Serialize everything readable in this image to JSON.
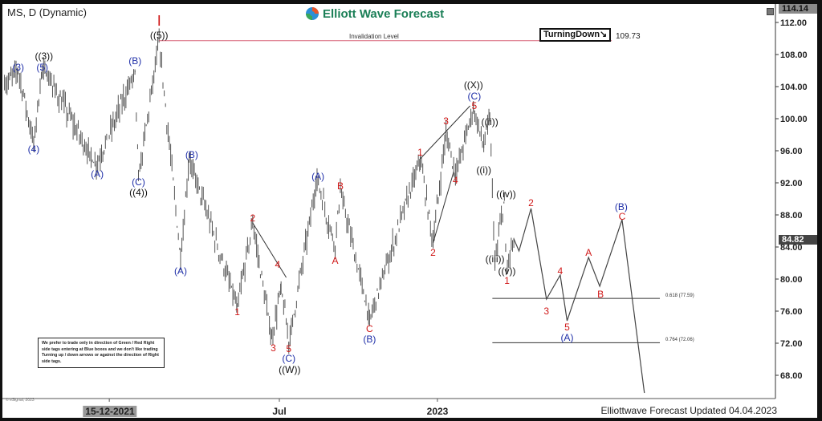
{
  "header": {
    "symbol_title": "MS, D (Dynamic)",
    "brand": "Elliott Wave Forecast",
    "turning_badge": "TurningDown↘",
    "invalidation_label": "Invalidation Level",
    "invalidation_value": "109.73"
  },
  "footer": {
    "updated": "Elliottwave Forecast Updated 04.04.2023",
    "copyright": "© eSignal, 2023"
  },
  "disclaimer": "We prefer to trade only in direction of Green / Red Right side tags entering at Blue boxes and we don't like trading Turning up / down arrows or against the direction of Right side tags.",
  "price_tags": {
    "high": "114.14",
    "current": "84.82"
  },
  "fib_labels": {
    "f618": "0.618 (77.59)",
    "f764": "0.764 (72.06)"
  },
  "colors": {
    "red": "#d01818",
    "blue": "#1f2fa8",
    "black": "#111111",
    "bars": "#555555",
    "brand": "#1b7f57",
    "invalidation": "#d9667a"
  },
  "chart_data": {
    "type": "bar",
    "subtype": "ohlc-price-with-elliott-wave-labels",
    "symbol": "MS",
    "ylim": [
      64.5,
      114.14
    ],
    "y_ticks": [
      "112.00",
      "108.00",
      "104.00",
      "100.00",
      "96.00",
      "92.00",
      "88.00",
      "84.00",
      "80.00",
      "76.00",
      "72.00",
      "68.00"
    ],
    "x_ticks": [
      {
        "date": "2021-12-15",
        "label": "15-12-2021"
      },
      {
        "date": "2022-07-01",
        "label": "Jul"
      },
      {
        "date": "2023-01-01",
        "label": "2023"
      }
    ],
    "grid": false,
    "price_pivots": [
      [
        "2021-08-15",
        104
      ],
      [
        "2021-08-31",
        106
      ],
      [
        "2021-09-18",
        97
      ],
      [
        "2021-09-28",
        106.5
      ],
      [
        "2021-11-30",
        94
      ],
      [
        "2022-01-14",
        106
      ],
      [
        "2022-01-18",
        92.5
      ],
      [
        "2022-02-11",
        109.73
      ],
      [
        "2022-03-08",
        82.5
      ],
      [
        "2022-03-18",
        95
      ],
      [
        "2022-05-13",
        76.5
      ],
      [
        "2022-05-31",
        87
      ],
      [
        "2022-06-22",
        72.5
      ],
      [
        "2022-07-03",
        79
      ],
      [
        "2022-07-12",
        72
      ],
      [
        "2022-08-14",
        92.5
      ],
      [
        "2022-09-04",
        84
      ],
      [
        "2022-09-10",
        91
      ],
      [
        "2022-10-14",
        75
      ],
      [
        "2022-12-12",
        95
      ],
      [
        "2022-12-27",
        84.5
      ],
      [
        "2023-01-11",
        98.5
      ],
      [
        "2023-01-22",
        93
      ],
      [
        "2023-02-12",
        101.3
      ],
      [
        "2023-02-24",
        96.5
      ],
      [
        "2023-03-03",
        100
      ],
      [
        "2023-03-09",
        82
      ],
      [
        "2023-03-20",
        90
      ],
      [
        "2023-03-22",
        81
      ],
      [
        "2023-03-31",
        84.82
      ]
    ],
    "projection_path": [
      [
        "2023-03-31",
        85
      ],
      [
        "2023-04-06",
        83.5
      ],
      [
        "2023-04-20",
        88.8
      ],
      [
        "2023-05-08",
        77.5
      ],
      [
        "2023-05-24",
        80.5
      ],
      [
        "2023-06-01",
        74.8
      ],
      [
        "2023-06-26",
        82.7
      ],
      [
        "2023-07-09",
        79.1
      ],
      [
        "2023-08-04",
        87.4
      ],
      [
        "2023-08-30",
        65.8
      ]
    ],
    "trend_lines": [
      [
        [
          "2022-05-31",
          87
        ],
        [
          "2022-07-09",
          80.2
        ]
      ],
      [
        [
          "2022-12-12",
          95
        ],
        [
          "2023-02-08",
          101.6
        ]
      ],
      [
        [
          "2022-12-27",
          84.5
        ],
        [
          "2023-01-20",
          93.4
        ]
      ]
    ],
    "levels": [
      {
        "name": "invalidation",
        "value": 109.73,
        "from": "2022-02-11",
        "to": "2023-07-23"
      },
      {
        "name": "fib_0.618",
        "value": 77.59,
        "from": "2023-03-06",
        "to": "2023-09-17"
      },
      {
        "name": "fib_0.764",
        "value": 72.06,
        "from": "2023-03-06",
        "to": "2023-09-17"
      }
    ],
    "wave_labels": [
      {
        "t": "I",
        "c": "red",
        "d": "2022-02-11",
        "p": 112.0,
        "big": true
      },
      {
        "t": "((5))",
        "c": "black",
        "d": "2022-02-11",
        "p": 110.4
      },
      {
        "t": "((3))",
        "c": "black",
        "d": "2021-09-30",
        "p": 107.8
      },
      {
        "t": "(3)",
        "c": "blue",
        "d": "2021-08-31",
        "p": 106.4
      },
      {
        "t": "(5)",
        "c": "blue",
        "d": "2021-09-28",
        "p": 106.4
      },
      {
        "t": "(4)",
        "c": "blue",
        "d": "2021-09-18",
        "p": 96.2
      },
      {
        "t": "(A)",
        "c": "blue",
        "d": "2021-12-01",
        "p": 93.1
      },
      {
        "t": "(B)",
        "c": "blue",
        "d": "2022-01-14",
        "p": 107.2
      },
      {
        "t": "(C)",
        "c": "blue",
        "d": "2022-01-18",
        "p": 92.1
      },
      {
        "t": "((4))",
        "c": "black",
        "d": "2022-01-18",
        "p": 90.8
      },
      {
        "t": "(B)",
        "c": "blue",
        "d": "2022-03-21",
        "p": 95.5
      },
      {
        "t": "(A)",
        "c": "blue",
        "d": "2022-03-08",
        "p": 81.0
      },
      {
        "t": "2",
        "c": "red",
        "d": "2022-05-31",
        "p": 87.6
      },
      {
        "t": "4",
        "c": "red",
        "d": "2022-06-29",
        "p": 81.8
      },
      {
        "t": "1",
        "c": "red",
        "d": "2022-05-13",
        "p": 75.9
      },
      {
        "t": "3",
        "c": "red",
        "d": "2022-06-24",
        "p": 71.4
      },
      {
        "t": "5",
        "c": "red",
        "d": "2022-07-12",
        "p": 71.3
      },
      {
        "t": "(C)",
        "c": "blue",
        "d": "2022-07-12",
        "p": 70.1
      },
      {
        "t": "((W))",
        "c": "black",
        "d": "2022-07-13",
        "p": 68.7
      },
      {
        "t": "(A)",
        "c": "blue",
        "d": "2022-08-15",
        "p": 92.8
      },
      {
        "t": "B",
        "c": "red",
        "d": "2022-09-10",
        "p": 91.6
      },
      {
        "t": "A",
        "c": "red",
        "d": "2022-09-04",
        "p": 82.3
      },
      {
        "t": "C",
        "c": "red",
        "d": "2022-10-14",
        "p": 73.8
      },
      {
        "t": "(B)",
        "c": "blue",
        "d": "2022-10-14",
        "p": 72.5
      },
      {
        "t": "1",
        "c": "red",
        "d": "2022-12-12",
        "p": 95.8
      },
      {
        "t": "2",
        "c": "red",
        "d": "2022-12-27",
        "p": 83.3
      },
      {
        "t": "3",
        "c": "red",
        "d": "2023-01-11",
        "p": 99.7
      },
      {
        "t": "4",
        "c": "red",
        "d": "2023-01-22",
        "p": 92.3
      },
      {
        "t": "((X))",
        "c": "black",
        "d": "2023-02-12",
        "p": 104.2
      },
      {
        "t": "(C)",
        "c": "blue",
        "d": "2023-02-13",
        "p": 102.8
      },
      {
        "t": "5",
        "c": "red",
        "d": "2023-02-13",
        "p": 101.6
      },
      {
        "t": "((ii))",
        "c": "black",
        "d": "2023-03-03",
        "p": 99.6
      },
      {
        "t": "((i))",
        "c": "black",
        "d": "2023-02-24",
        "p": 93.6
      },
      {
        "t": "((iv))",
        "c": "black",
        "d": "2023-03-22",
        "p": 90.6
      },
      {
        "t": "((iii))",
        "c": "black",
        "d": "2023-03-09",
        "p": 82.5
      },
      {
        "t": "((v))",
        "c": "black",
        "d": "2023-03-23",
        "p": 81.0
      },
      {
        "t": "1",
        "c": "red",
        "d": "2023-03-23",
        "p": 79.8
      },
      {
        "t": "2",
        "c": "red",
        "d": "2023-04-20",
        "p": 89.5
      },
      {
        "t": "3",
        "c": "red",
        "d": "2023-05-08",
        "p": 76.0
      },
      {
        "t": "4",
        "c": "red",
        "d": "2023-05-24",
        "p": 81.0
      },
      {
        "t": "5",
        "c": "red",
        "d": "2023-06-01",
        "p": 74.0
      },
      {
        "t": "(A)",
        "c": "blue",
        "d": "2023-06-01",
        "p": 72.7
      },
      {
        "t": "A",
        "c": "red",
        "d": "2023-06-26",
        "p": 83.3
      },
      {
        "t": "B",
        "c": "red",
        "d": "2023-07-10",
        "p": 78.1
      },
      {
        "t": "(B)",
        "c": "blue",
        "d": "2023-08-03",
        "p": 89.0
      },
      {
        "t": "C",
        "c": "red",
        "d": "2023-08-04",
        "p": 87.8
      }
    ]
  }
}
